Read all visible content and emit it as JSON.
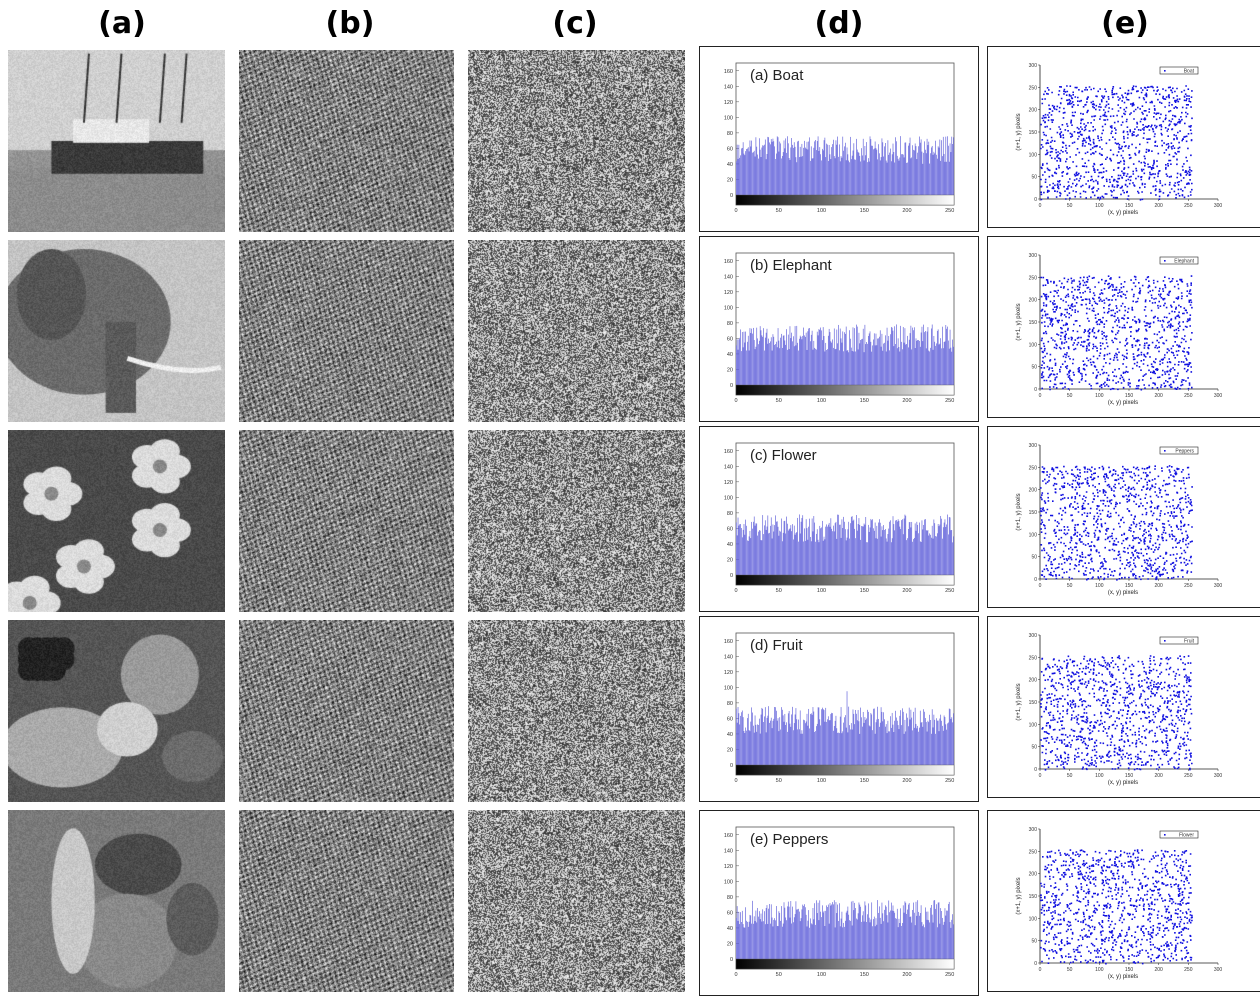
{
  "column_labels": [
    "(a)",
    "(b)",
    "(c)",
    "(d)",
    "(e)"
  ],
  "rows": [
    {
      "image": "boat",
      "histogram_label": "(a) Boat",
      "scatter_legend": "Boat",
      "hist_mean": 58
    },
    {
      "image": "elephant",
      "histogram_label": "(b) Elephant",
      "scatter_legend": "Elephant",
      "hist_mean": 60
    },
    {
      "image": "flower",
      "histogram_label": "(c) Flower",
      "scatter_legend": "Peppers",
      "hist_mean": 60
    },
    {
      "image": "fruit",
      "histogram_label": "(d) Fruit",
      "scatter_legend": "Fruit",
      "hist_mean": 58
    },
    {
      "image": "peppers",
      "histogram_label": "(e) Peppers",
      "scatter_legend": "Flower",
      "hist_mean": 58
    }
  ],
  "histogram_axes": {
    "x_ticks": [
      "0",
      "50",
      "100",
      "150",
      "200",
      "250"
    ],
    "y_ticks": [
      "0",
      "20",
      "40",
      "60",
      "80",
      "100",
      "120",
      "140",
      "160"
    ],
    "xlim": [
      0,
      255
    ],
    "ylim": [
      0,
      170
    ],
    "bar_color": "#5a5ad8"
  },
  "scatter_axes": {
    "xlabel": "(x, y) pixels",
    "ylabel": "(x+1, y) pixels",
    "x_ticks": [
      "0",
      "50",
      "100",
      "150",
      "200",
      "250",
      "300"
    ],
    "y_ticks": [
      "0",
      "50",
      "100",
      "150",
      "200",
      "250",
      "300"
    ],
    "xlim": [
      0,
      300
    ],
    "ylim": [
      0,
      300
    ],
    "point_color": "#1010e0",
    "points_per_plot": 1100
  },
  "chart_data": [
    {
      "type": "bar",
      "title": "(a) Boat",
      "categories": "gray levels 0-255",
      "ylim": [
        0,
        170
      ],
      "approx_value_range": [
        40,
        80
      ]
    },
    {
      "type": "bar",
      "title": "(b) Elephant",
      "categories": "gray levels 0-255",
      "ylim": [
        0,
        170
      ],
      "approx_value_range": [
        40,
        80
      ]
    },
    {
      "type": "bar",
      "title": "(c) Flower",
      "categories": "gray levels 0-255",
      "ylim": [
        0,
        170
      ],
      "approx_value_range": [
        40,
        80
      ]
    },
    {
      "type": "bar",
      "title": "(d) Fruit",
      "categories": "gray levels 0-255",
      "ylim": [
        0,
        170
      ],
      "approx_value_range": [
        40,
        95
      ]
    },
    {
      "type": "bar",
      "title": "(e) Peppers",
      "categories": "gray levels 0-255",
      "ylim": [
        0,
        170
      ],
      "approx_value_range": [
        40,
        85
      ]
    },
    {
      "type": "scatter",
      "legend": "Boat",
      "xlabel": "(x, y) pixels",
      "ylabel": "(x+1, y) pixels",
      "xlim": [
        0,
        300
      ],
      "ylim": [
        0,
        300
      ]
    },
    {
      "type": "scatter",
      "legend": "Elephant",
      "xlabel": "(x, y) pixels",
      "ylabel": "(x+1, y) pixels",
      "xlim": [
        0,
        300
      ],
      "ylim": [
        0,
        300
      ]
    },
    {
      "type": "scatter",
      "legend": "Peppers",
      "xlabel": "(x, y) pixels",
      "ylabel": "(x+1, y) pixels",
      "xlim": [
        0,
        300
      ],
      "ylim": [
        0,
        300
      ]
    },
    {
      "type": "scatter",
      "legend": "Fruit",
      "xlabel": "(x, y) pixels",
      "ylabel": "(x+1, y) pixels",
      "xlim": [
        0,
        300
      ],
      "ylim": [
        0,
        300
      ]
    },
    {
      "type": "scatter",
      "legend": "Flower",
      "xlabel": "(x, y) pixels",
      "ylabel": "(x+1, y) pixels",
      "xlim": [
        0,
        300
      ],
      "ylim": [
        0,
        300
      ]
    }
  ]
}
